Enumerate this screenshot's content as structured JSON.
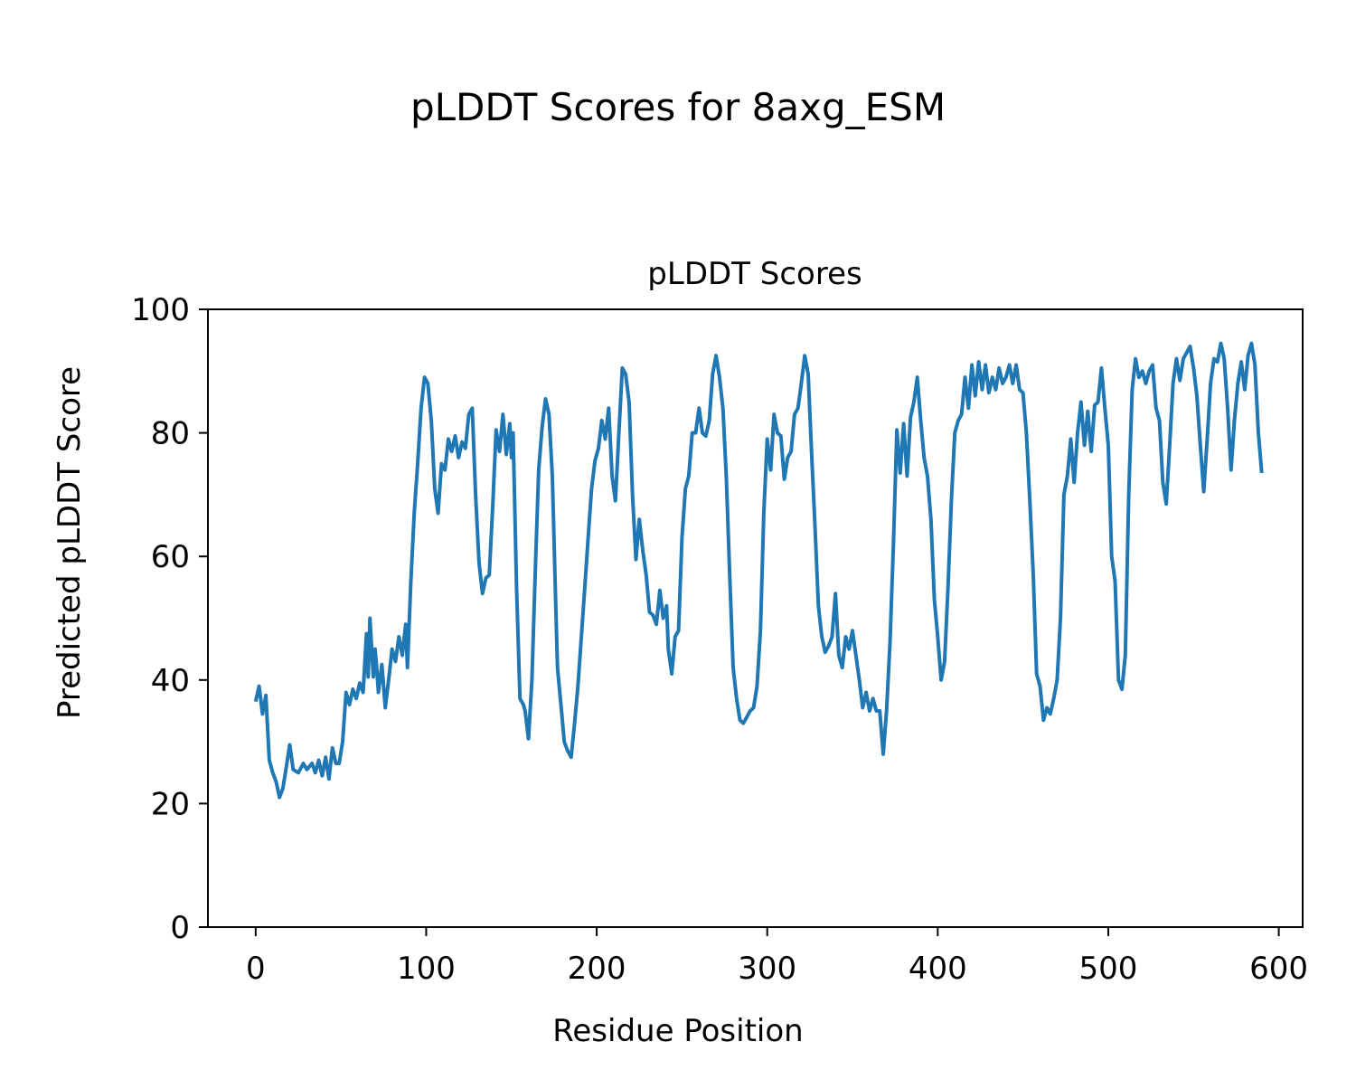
{
  "figure": {
    "suptitle": "pLDDT Scores for 8axg_ESM"
  },
  "colors": {
    "line": "#1f77b4",
    "axes": "#000000",
    "background": "#ffffff"
  },
  "chart_data": {
    "type": "line",
    "title": "pLDDT Scores",
    "xlabel": "Residue Position",
    "ylabel": "Predicted pLDDT Score",
    "xlim": [
      -28,
      614
    ],
    "ylim": [
      0,
      100
    ],
    "xticks": [
      0,
      100,
      200,
      300,
      400,
      500,
      600
    ],
    "yticks": [
      0,
      20,
      40,
      60,
      80,
      100
    ],
    "grid": false,
    "series": [
      {
        "points": [
          [
            0,
            36.5
          ],
          [
            2,
            39
          ],
          [
            4,
            34.5
          ],
          [
            6,
            37.5
          ],
          [
            8,
            27
          ],
          [
            10,
            25
          ],
          [
            12,
            23.5
          ],
          [
            14,
            21
          ],
          [
            16,
            22.5
          ],
          [
            18,
            26
          ],
          [
            20,
            29.5
          ],
          [
            22,
            25.5
          ],
          [
            25,
            25
          ],
          [
            28,
            26.5
          ],
          [
            30,
            25.5
          ],
          [
            33,
            26.5
          ],
          [
            35,
            25
          ],
          [
            37,
            27
          ],
          [
            39,
            24.5
          ],
          [
            41,
            27.5
          ],
          [
            43,
            24
          ],
          [
            45,
            29
          ],
          [
            47,
            26.5
          ],
          [
            49,
            26.5
          ],
          [
            51,
            30
          ],
          [
            53,
            38
          ],
          [
            55,
            36
          ],
          [
            57,
            38.5
          ],
          [
            59,
            37
          ],
          [
            61,
            39.5
          ],
          [
            63,
            38
          ],
          [
            65,
            47.5
          ],
          [
            66,
            40.5
          ],
          [
            67,
            50
          ],
          [
            69,
            40.5
          ],
          [
            70,
            45
          ],
          [
            71,
            42
          ],
          [
            72,
            38
          ],
          [
            74,
            42.5
          ],
          [
            76,
            35.5
          ],
          [
            78,
            40
          ],
          [
            80,
            45
          ],
          [
            82,
            43
          ],
          [
            84,
            47
          ],
          [
            86,
            44
          ],
          [
            88,
            49
          ],
          [
            89,
            42
          ],
          [
            91,
            56
          ],
          [
            93,
            67
          ],
          [
            95,
            75
          ],
          [
            97,
            84
          ],
          [
            99,
            89
          ],
          [
            101,
            88
          ],
          [
            103,
            82
          ],
          [
            105,
            71
          ],
          [
            107,
            67
          ],
          [
            109,
            75
          ],
          [
            111,
            74
          ],
          [
            113,
            79
          ],
          [
            115,
            77
          ],
          [
            117,
            79.5
          ],
          [
            119,
            76
          ],
          [
            121,
            78.5
          ],
          [
            123,
            77.5
          ],
          [
            125,
            83
          ],
          [
            127,
            84
          ],
          [
            129,
            70
          ],
          [
            131,
            59
          ],
          [
            133,
            54
          ],
          [
            135,
            56.5
          ],
          [
            137,
            57
          ],
          [
            139,
            68
          ],
          [
            141,
            80.5
          ],
          [
            143,
            77
          ],
          [
            145,
            83
          ],
          [
            147,
            76.5
          ],
          [
            149,
            81.5
          ],
          [
            150,
            76
          ],
          [
            151,
            80
          ],
          [
            153,
            55
          ],
          [
            155,
            37
          ],
          [
            157,
            36
          ],
          [
            158,
            35
          ],
          [
            160,
            30.5
          ],
          [
            162,
            40
          ],
          [
            164,
            58
          ],
          [
            166,
            74
          ],
          [
            168,
            81
          ],
          [
            170,
            85.5
          ],
          [
            172,
            83
          ],
          [
            174,
            73
          ],
          [
            176,
            52
          ],
          [
            177,
            42
          ],
          [
            179,
            36
          ],
          [
            181,
            30
          ],
          [
            183,
            28.5
          ],
          [
            185,
            27.5
          ],
          [
            187,
            33
          ],
          [
            189,
            39
          ],
          [
            191,
            47
          ],
          [
            193,
            55
          ],
          [
            195,
            63
          ],
          [
            197,
            71
          ],
          [
            199,
            75.5
          ],
          [
            201,
            77.5
          ],
          [
            203,
            82
          ],
          [
            205,
            79
          ],
          [
            207,
            84
          ],
          [
            209,
            73
          ],
          [
            211,
            69
          ],
          [
            213,
            80
          ],
          [
            215,
            90.5
          ],
          [
            217,
            89.5
          ],
          [
            219,
            85
          ],
          [
            221,
            70
          ],
          [
            223,
            59.5
          ],
          [
            225,
            66
          ],
          [
            227,
            61
          ],
          [
            229,
            57
          ],
          [
            231,
            51
          ],
          [
            233,
            50.5
          ],
          [
            235,
            49
          ],
          [
            237,
            54.5
          ],
          [
            239,
            50
          ],
          [
            241,
            52
          ],
          [
            242,
            45
          ],
          [
            244,
            41
          ],
          [
            246,
            47
          ],
          [
            248,
            48
          ],
          [
            250,
            63
          ],
          [
            252,
            71
          ],
          [
            254,
            73
          ],
          [
            256,
            80
          ],
          [
            258,
            80
          ],
          [
            260,
            84
          ],
          [
            262,
            80
          ],
          [
            264,
            79.5
          ],
          [
            266,
            82
          ],
          [
            268,
            89.5
          ],
          [
            270,
            92.5
          ],
          [
            272,
            89
          ],
          [
            274,
            84
          ],
          [
            276,
            73
          ],
          [
            278,
            57
          ],
          [
            280,
            42
          ],
          [
            282,
            37
          ],
          [
            284,
            33.5
          ],
          [
            286,
            33
          ],
          [
            288,
            34
          ],
          [
            290,
            35
          ],
          [
            292,
            35.5
          ],
          [
            294,
            39
          ],
          [
            296,
            48
          ],
          [
            298,
            67
          ],
          [
            300,
            79
          ],
          [
            302,
            74
          ],
          [
            304,
            83
          ],
          [
            306,
            80
          ],
          [
            308,
            79.5
          ],
          [
            310,
            72.5
          ],
          [
            312,
            76
          ],
          [
            314,
            77
          ],
          [
            316,
            83
          ],
          [
            318,
            84
          ],
          [
            320,
            88
          ],
          [
            322,
            92.5
          ],
          [
            324,
            89.5
          ],
          [
            326,
            77
          ],
          [
            328,
            65
          ],
          [
            330,
            52
          ],
          [
            332,
            47
          ],
          [
            334,
            44.5
          ],
          [
            336,
            45.5
          ],
          [
            338,
            47
          ],
          [
            340,
            54
          ],
          [
            342,
            44
          ],
          [
            344,
            42
          ],
          [
            346,
            47
          ],
          [
            348,
            45
          ],
          [
            350,
            48
          ],
          [
            352,
            44
          ],
          [
            354,
            40
          ],
          [
            356,
            35.5
          ],
          [
            358,
            38
          ],
          [
            360,
            35
          ],
          [
            362,
            37
          ],
          [
            364,
            35
          ],
          [
            366,
            35
          ],
          [
            368,
            28
          ],
          [
            370,
            35
          ],
          [
            372,
            46
          ],
          [
            374,
            62
          ],
          [
            376,
            80.5
          ],
          [
            378,
            73.5
          ],
          [
            380,
            81.5
          ],
          [
            382,
            73
          ],
          [
            384,
            82.5
          ],
          [
            386,
            85
          ],
          [
            388,
            89
          ],
          [
            390,
            82
          ],
          [
            392,
            76
          ],
          [
            394,
            73
          ],
          [
            396,
            66
          ],
          [
            398,
            53
          ],
          [
            400,
            47
          ],
          [
            402,
            40
          ],
          [
            404,
            43
          ],
          [
            406,
            55
          ],
          [
            408,
            69
          ],
          [
            410,
            80
          ],
          [
            412,
            82
          ],
          [
            414,
            83
          ],
          [
            416,
            89
          ],
          [
            418,
            84
          ],
          [
            420,
            91
          ],
          [
            422,
            86
          ],
          [
            424,
            91.5
          ],
          [
            426,
            87
          ],
          [
            428,
            91
          ],
          [
            430,
            86.5
          ],
          [
            432,
            89
          ],
          [
            434,
            87
          ],
          [
            436,
            90.5
          ],
          [
            438,
            88
          ],
          [
            440,
            89
          ],
          [
            442,
            91
          ],
          [
            444,
            88
          ],
          [
            446,
            91
          ],
          [
            448,
            87
          ],
          [
            450,
            86.5
          ],
          [
            452,
            80
          ],
          [
            454,
            69
          ],
          [
            456,
            57
          ],
          [
            458,
            41
          ],
          [
            460,
            39
          ],
          [
            462,
            33.5
          ],
          [
            464,
            35.5
          ],
          [
            466,
            34.5
          ],
          [
            468,
            37
          ],
          [
            470,
            40
          ],
          [
            472,
            50
          ],
          [
            474,
            70
          ],
          [
            476,
            73
          ],
          [
            478,
            79
          ],
          [
            480,
            72
          ],
          [
            482,
            80
          ],
          [
            484,
            85
          ],
          [
            486,
            78
          ],
          [
            488,
            83.5
          ],
          [
            490,
            77
          ],
          [
            492,
            84.5
          ],
          [
            494,
            85
          ],
          [
            496,
            90.5
          ],
          [
            498,
            84
          ],
          [
            500,
            78
          ],
          [
            502,
            60
          ],
          [
            504,
            56
          ],
          [
            506,
            40
          ],
          [
            508,
            38.5
          ],
          [
            510,
            44
          ],
          [
            512,
            70
          ],
          [
            514,
            87
          ],
          [
            516,
            92
          ],
          [
            518,
            89
          ],
          [
            520,
            90
          ],
          [
            522,
            88
          ],
          [
            524,
            90
          ],
          [
            526,
            91
          ],
          [
            528,
            84
          ],
          [
            530,
            82
          ],
          [
            532,
            72
          ],
          [
            534,
            68.5
          ],
          [
            536,
            78
          ],
          [
            538,
            88
          ],
          [
            540,
            92
          ],
          [
            542,
            88.5
          ],
          [
            544,
            92
          ],
          [
            546,
            93
          ],
          [
            548,
            94
          ],
          [
            550,
            90.5
          ],
          [
            552,
            86
          ],
          [
            554,
            78
          ],
          [
            556,
            70.5
          ],
          [
            558,
            79
          ],
          [
            560,
            88
          ],
          [
            562,
            92
          ],
          [
            564,
            91.5
          ],
          [
            566,
            94.5
          ],
          [
            568,
            92
          ],
          [
            570,
            84
          ],
          [
            572,
            74
          ],
          [
            574,
            82
          ],
          [
            576,
            88
          ],
          [
            578,
            91.5
          ],
          [
            580,
            87
          ],
          [
            582,
            92.5
          ],
          [
            584,
            94.5
          ],
          [
            586,
            91
          ],
          [
            588,
            80
          ],
          [
            590,
            73.5
          ]
        ]
      }
    ]
  }
}
